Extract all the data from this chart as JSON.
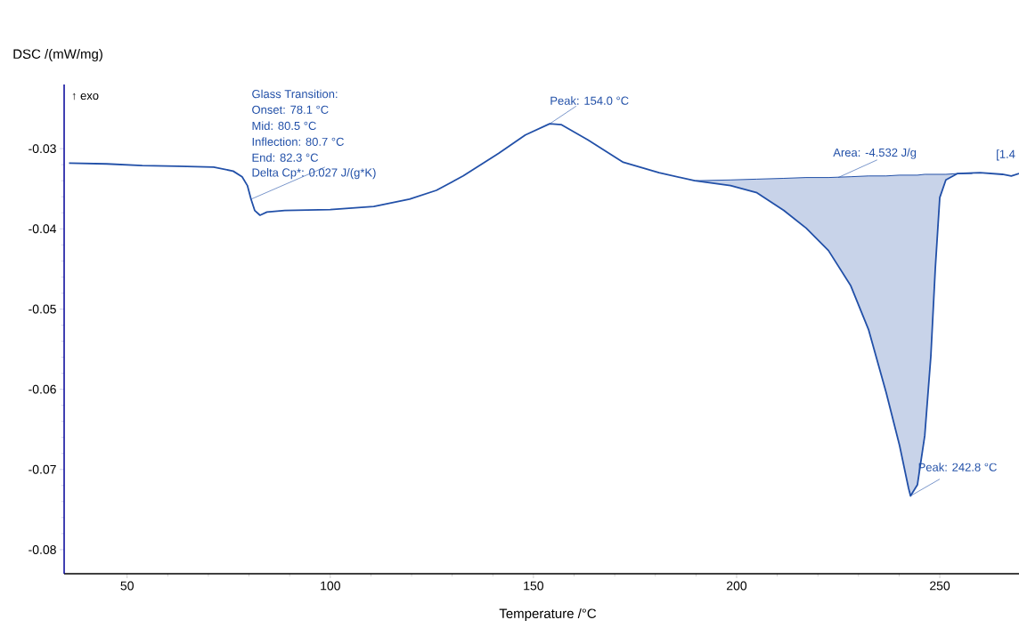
{
  "chart_data": {
    "type": "line",
    "xlabel": "Temperature /°C",
    "ylabel": "DSC /(mW/mg)",
    "xlim": [
      34.5,
      269.5
    ],
    "ylim": [
      -0.083,
      -0.022
    ],
    "xticks": [
      50,
      100,
      150,
      200,
      250
    ],
    "yticks": [
      -0.08,
      -0.07,
      -0.06,
      -0.05,
      -0.04,
      -0.03
    ],
    "grid": false,
    "marker": "none",
    "line_style": "solid",
    "series": [
      {
        "color": "#2250a8",
        "x": [
          35.7,
          45,
          53.7,
          62.5,
          71.3,
          76.1,
          78.3,
          79.6,
          80.5,
          81.4,
          82.7,
          84.4,
          88.8,
          100,
          110.7,
          119.5,
          126.1,
          132.7,
          141.4,
          148,
          154,
          156.8,
          163.4,
          172.1,
          180.9,
          189.7,
          198.5,
          205,
          211.6,
          217.1,
          222.6,
          228.1,
          232.5,
          236.8,
          240.1,
          242.3,
          242.8,
          244.5,
          246.3,
          247.8,
          248.9,
          250,
          251.5,
          254.4,
          259.9,
          265.4,
          267.6,
          269.5
        ],
        "values": [
          -0.0318,
          -0.0319,
          -0.0321,
          -0.0322,
          -0.0323,
          -0.0328,
          -0.0335,
          -0.0346,
          -0.0363,
          -0.0377,
          -0.0383,
          -0.0379,
          -0.0377,
          -0.0376,
          -0.0372,
          -0.0363,
          -0.0352,
          -0.0334,
          -0.0306,
          -0.0283,
          -0.0269,
          -0.027,
          -0.0289,
          -0.0317,
          -0.033,
          -0.034,
          -0.0346,
          -0.0355,
          -0.0377,
          -0.0399,
          -0.0427,
          -0.0471,
          -0.0526,
          -0.0604,
          -0.067,
          -0.0723,
          -0.0733,
          -0.0719,
          -0.0658,
          -0.0559,
          -0.0449,
          -0.0361,
          -0.0339,
          -0.0331,
          -0.033,
          -0.0332,
          -0.0334,
          -0.0331
        ]
      },
      {
        "type": "line",
        "color": "#2250a8",
        "x": [
          189.7,
          198.5,
          205,
          211.6,
          217.1,
          222.6,
          228.1,
          232.5,
          236.8,
          240.1,
          242.3,
          242.8,
          244.5,
          246.3,
          247.8,
          248.9,
          250,
          251.5,
          254.4,
          258
        ],
        "values": [
          -0.034,
          -0.0339,
          -0.0338,
          -0.0337,
          -0.0336,
          -0.0336,
          -0.0335,
          -0.0334,
          -0.0334,
          -0.0333,
          -0.0333,
          -0.0333,
          -0.0333,
          -0.0332,
          -0.0332,
          -0.0332,
          -0.0332,
          -0.0332,
          -0.0331,
          -0.0331
        ],
        "upper": [
          -0.034,
          -0.0339,
          -0.0338,
          -0.0337,
          -0.0336,
          -0.0336,
          -0.0335,
          -0.0334,
          -0.0334,
          -0.0333,
          -0.0333,
          -0.0333,
          -0.0333,
          -0.0332,
          -0.0332,
          -0.0332,
          -0.0332,
          -0.0332,
          -0.0331,
          -0.0331
        ],
        "lower": [
          -0.034,
          -0.0346,
          -0.0355,
          -0.0377,
          -0.0399,
          -0.0427,
          -0.0471,
          -0.0526,
          -0.0604,
          -0.067,
          -0.0723,
          -0.0733,
          -0.0719,
          -0.0658,
          -0.0559,
          -0.0449,
          -0.0361,
          -0.0339,
          -0.0331,
          -0.0331
        ]
      }
    ],
    "annotations": [
      "↑ exo",
      "Glass Transition:",
      "Onset: 78.1 °C",
      "Mid: 80.5 °C",
      "Inflection: 80.7 °C",
      "End: 82.3 °C",
      {
        "text": "Delta Cp*: 0.027 J/(g*K)",
        "x": 80.5,
        "y": -0.0363
      },
      {
        "text": "Peak: 154.0 °C",
        "x": 154.0,
        "y": -0.0269
      },
      {
        "text": "Area: -4.532 J/g",
        "x": 225,
        "y": -0.0336
      },
      {
        "text": "Peak: 242.8 °C",
        "x": 242.8,
        "y": -0.0733
      },
      "[1.4"
    ]
  }
}
